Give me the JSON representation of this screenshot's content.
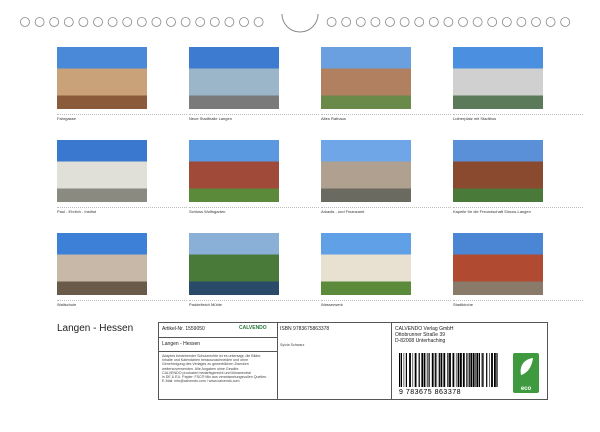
{
  "photos": [
    {
      "caption": "Fahrgasse"
    },
    {
      "caption": "Neue Stadthalle Langen"
    },
    {
      "caption": "Altes Rathaus"
    },
    {
      "caption": "Lutherplatz mit Stadtbus"
    },
    {
      "caption": "Paul - Ehrlich - Institut"
    },
    {
      "caption": "Schloss Wolfsgarten"
    },
    {
      "caption": "Arkadis - und Finanzamt"
    },
    {
      "caption": "Kapelle für die Freundschaft Sincus-Langen"
    },
    {
      "caption": "Wallschule"
    },
    {
      "caption": "Paddelteich Mühle"
    },
    {
      "caption": "Wasserwerk"
    },
    {
      "caption": "Stadtkirche"
    }
  ],
  "footer": {
    "title": "Langen - Hessen",
    "article": "Artikel-Nr. 1559050",
    "brand": "CALVENDO",
    "product_title": "Langen - Hessen",
    "notice": [
      "Adaptes bestehender Schutzrechte ist es untersagt, die Bilder,",
      "Inhalte und Kalendarien herauszuschneiden und ohne",
      "Genehmigung des Verlages zu gewerblichen Zwecken",
      "weiterzuverwenden. Alle Angaben ohne Gewähr.",
      "CALVENDO produziert bedarfsgerecht und klimaneutral",
      "in DE & EU. Papier: FSC® Mix aus verantwortungsvollen Quellen.",
      "E-Mail: info@calvendo.com / www.calvendo.com"
    ],
    "isbn": "ISBN 9783675863378",
    "author": "Sylvia Schwarz",
    "publisher": [
      "CALVENDO Verlag GmbH",
      "Ottobrunner Straße 39",
      "D-82008 Unterhaching"
    ],
    "barcode_digits": "9 783675 863378",
    "eco": "eco"
  }
}
